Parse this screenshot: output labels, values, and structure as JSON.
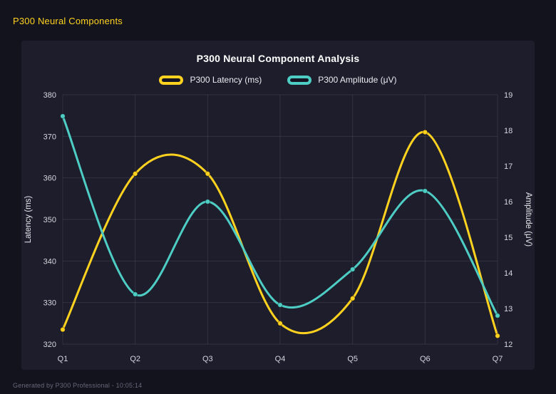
{
  "page": {
    "header_title": "P300 Neural Components",
    "footer_text": "Generated by P300 Professional - 10:05:14",
    "accent_color": "#ffd21f",
    "background_color": "#13131d",
    "panel_color": "#1d1d2c"
  },
  "chart_data": {
    "type": "line",
    "title": "P300 Neural Component Analysis",
    "categories": [
      "Q1",
      "Q2",
      "Q3",
      "Q4",
      "Q5",
      "Q6",
      "Q7"
    ],
    "series": [
      {
        "name": "P300 Latency (ms)",
        "axis": "left",
        "color": "#ffd21f",
        "values": [
          323.5,
          361,
          361,
          325,
          331,
          371,
          322
        ]
      },
      {
        "name": "P300 Amplitude (μV)",
        "axis": "right",
        "color": "#4ecdc4",
        "values": [
          18.4,
          13.4,
          16.0,
          13.1,
          14.1,
          16.3,
          12.8
        ]
      }
    ],
    "left_axis": {
      "label": "Latency (ms)",
      "min": 320,
      "max": 380,
      "step": 10
    },
    "right_axis": {
      "label": "Amplitude (μV)",
      "min": 12,
      "max": 19,
      "step": 1
    },
    "grid": true,
    "legend_position": "top",
    "curve": "smooth"
  }
}
